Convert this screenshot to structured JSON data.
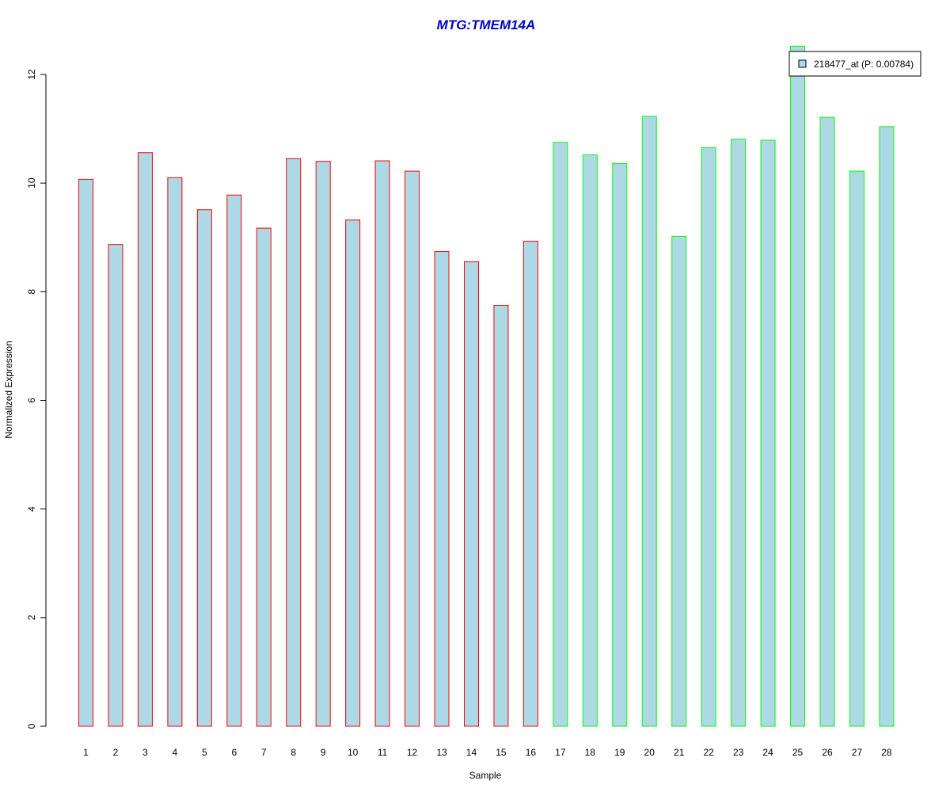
{
  "chart_data": {
    "type": "bar",
    "title": "MTG:TMEM14A",
    "xlabel": "Sample",
    "ylabel": "Normalized Expression",
    "ylim": [
      0,
      12
    ],
    "yticks": [
      "0",
      "2",
      "4",
      "6",
      "8",
      "10",
      "12"
    ],
    "grid": false,
    "legend": {
      "placement": "top-right",
      "label": "218477_at (P: 0.00784)"
    },
    "categories": [
      "1",
      "2",
      "3",
      "4",
      "5",
      "6",
      "7",
      "8",
      "9",
      "10",
      "11",
      "12",
      "13",
      "14",
      "15",
      "16",
      "17",
      "18",
      "19",
      "20",
      "21",
      "22",
      "23",
      "24",
      "25",
      "26",
      "27",
      "28"
    ],
    "values": [
      10.07,
      8.87,
      10.56,
      10.1,
      9.51,
      9.78,
      9.17,
      10.45,
      10.4,
      9.32,
      10.41,
      10.22,
      8.74,
      8.55,
      7.75,
      8.93,
      10.75,
      10.52,
      10.36,
      11.23,
      9.02,
      10.65,
      10.81,
      10.79,
      12.52,
      11.21,
      10.22,
      11.04
    ],
    "groups": [
      {
        "samples": [
          1,
          16
        ],
        "border_color": "#ff0000"
      },
      {
        "samples": [
          17,
          28
        ],
        "border_color": "#00ff00"
      }
    ],
    "fill_color": "#add8e6"
  }
}
